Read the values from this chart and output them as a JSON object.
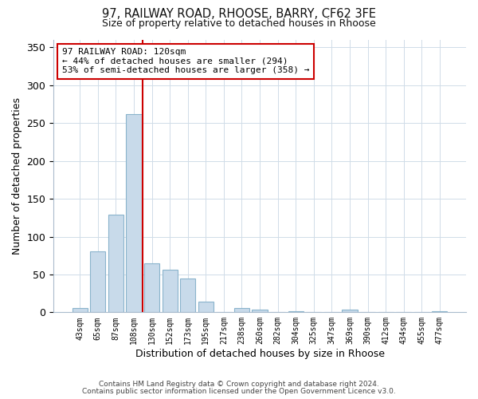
{
  "title_line1": "97, RAILWAY ROAD, RHOOSE, BARRY, CF62 3FE",
  "title_line2": "Size of property relative to detached houses in Rhoose",
  "xlabel": "Distribution of detached houses by size in Rhoose",
  "ylabel": "Number of detached properties",
  "bar_labels": [
    "43sqm",
    "65sqm",
    "87sqm",
    "108sqm",
    "130sqm",
    "152sqm",
    "173sqm",
    "195sqm",
    "217sqm",
    "238sqm",
    "260sqm",
    "282sqm",
    "304sqm",
    "325sqm",
    "347sqm",
    "369sqm",
    "390sqm",
    "412sqm",
    "434sqm",
    "455sqm",
    "477sqm"
  ],
  "bar_values": [
    6,
    81,
    129,
    262,
    65,
    56,
    45,
    14,
    0,
    6,
    4,
    0,
    1,
    0,
    0,
    3,
    0,
    0,
    0,
    0,
    1
  ],
  "bar_color": "#c8daea",
  "bar_edge_color": "#8ab4cc",
  "vline_color": "#cc0000",
  "annotation_text": "97 RAILWAY ROAD: 120sqm\n← 44% of detached houses are smaller (294)\n53% of semi-detached houses are larger (358) →",
  "annotation_box_color": "#ffffff",
  "annotation_box_edge_color": "#cc0000",
  "ylim": [
    0,
    360
  ],
  "yticks": [
    0,
    50,
    100,
    150,
    200,
    250,
    300,
    350
  ],
  "footer_line1": "Contains HM Land Registry data © Crown copyright and database right 2024.",
  "footer_line2": "Contains public sector information licensed under the Open Government Licence v3.0.",
  "fig_background_color": "#ffffff",
  "plot_background_color": "#ffffff",
  "grid_color": "#d0dce8"
}
